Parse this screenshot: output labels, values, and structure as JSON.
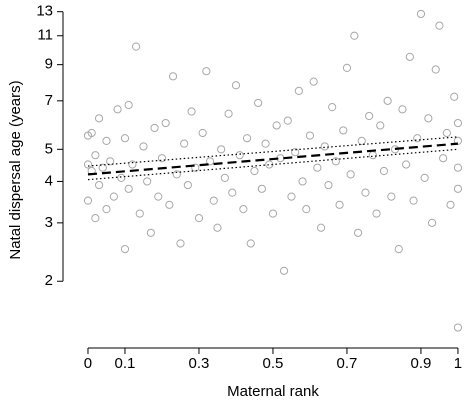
{
  "chart_data": {
    "type": "scatter",
    "x_label": "Maternal rank",
    "y_label": "Natal dispersal age (years)",
    "xlim": [
      -0.054,
      1.038
    ],
    "ylim": [
      1.33,
      14.1
    ],
    "ylog": true,
    "xticks": [
      0,
      0.1,
      0.3,
      0.5,
      0.7,
      0.9,
      1
    ],
    "yticks": [
      2,
      3,
      4,
      5,
      7,
      9,
      11,
      13
    ],
    "color": "#a8a8a8",
    "x": [
      0.0,
      0.0,
      0.0,
      0.01,
      0.01,
      0.02,
      0.02,
      0.03,
      0.03,
      0.04,
      0.05,
      0.05,
      0.06,
      0.07,
      0.08,
      0.09,
      0.1,
      0.1,
      0.11,
      0.11,
      0.12,
      0.13,
      0.14,
      0.15,
      0.16,
      0.17,
      0.18,
      0.19,
      0.2,
      0.21,
      0.22,
      0.23,
      0.24,
      0.25,
      0.26,
      0.27,
      0.28,
      0.29,
      0.3,
      0.31,
      0.32,
      0.33,
      0.34,
      0.35,
      0.36,
      0.37,
      0.38,
      0.39,
      0.4,
      0.41,
      0.42,
      0.43,
      0.44,
      0.45,
      0.46,
      0.47,
      0.48,
      0.49,
      0.5,
      0.51,
      0.52,
      0.53,
      0.54,
      0.55,
      0.56,
      0.57,
      0.58,
      0.59,
      0.6,
      0.61,
      0.62,
      0.63,
      0.64,
      0.65,
      0.66,
      0.67,
      0.68,
      0.69,
      0.7,
      0.71,
      0.72,
      0.73,
      0.74,
      0.75,
      0.76,
      0.77,
      0.78,
      0.79,
      0.8,
      0.81,
      0.82,
      0.83,
      0.84,
      0.85,
      0.86,
      0.87,
      0.88,
      0.89,
      0.9,
      0.91,
      0.92,
      0.93,
      0.94,
      0.95,
      0.96,
      0.97,
      0.98,
      0.99,
      1.0,
      1.0,
      1.0,
      1.0,
      1.0
    ],
    "values": [
      4.5,
      5.5,
      3.5,
      4.3,
      5.6,
      3.1,
      4.8,
      6.2,
      3.9,
      4.4,
      5.3,
      3.3,
      4.6,
      3.6,
      6.6,
      4.1,
      2.5,
      5.4,
      6.8,
      3.8,
      4.5,
      10.2,
      3.2,
      5.1,
      4.0,
      2.8,
      5.8,
      3.6,
      4.7,
      6.0,
      3.4,
      8.3,
      4.2,
      2.6,
      5.2,
      3.9,
      6.5,
      4.4,
      3.1,
      5.6,
      8.6,
      4.6,
      3.5,
      2.9,
      5.0,
      4.1,
      6.4,
      3.7,
      7.8,
      4.8,
      3.3,
      5.4,
      2.6,
      4.3,
      6.9,
      3.8,
      5.2,
      4.5,
      3.2,
      5.9,
      4.7,
      2.15,
      6.1,
      3.6,
      4.9,
      7.5,
      4.0,
      3.3,
      5.5,
      8.0,
      4.4,
      2.9,
      5.1,
      3.9,
      6.7,
      4.6,
      3.4,
      5.7,
      8.8,
      4.2,
      11.0,
      2.8,
      5.3,
      3.7,
      6.3,
      4.8,
      3.2,
      5.9,
      4.3,
      7.0,
      3.6,
      5.0,
      2.5,
      6.6,
      4.5,
      9.5,
      3.5,
      5.4,
      12.8,
      4.1,
      6.2,
      3.0,
      8.7,
      11.8,
      4.7,
      5.6,
      3.4,
      7.2,
      4.4,
      5.3,
      1.45,
      3.8,
      6.0
    ],
    "lines": [
      {
        "style": "dashed",
        "x": [
          0,
          1
        ],
        "values": [
          4.2,
          5.2
        ]
      },
      {
        "style": "dotted",
        "x": [
          0,
          1
        ],
        "values": [
          4.05,
          5.0
        ]
      },
      {
        "style": "dotted",
        "x": [
          0,
          1
        ],
        "values": [
          4.45,
          5.45
        ]
      }
    ]
  }
}
